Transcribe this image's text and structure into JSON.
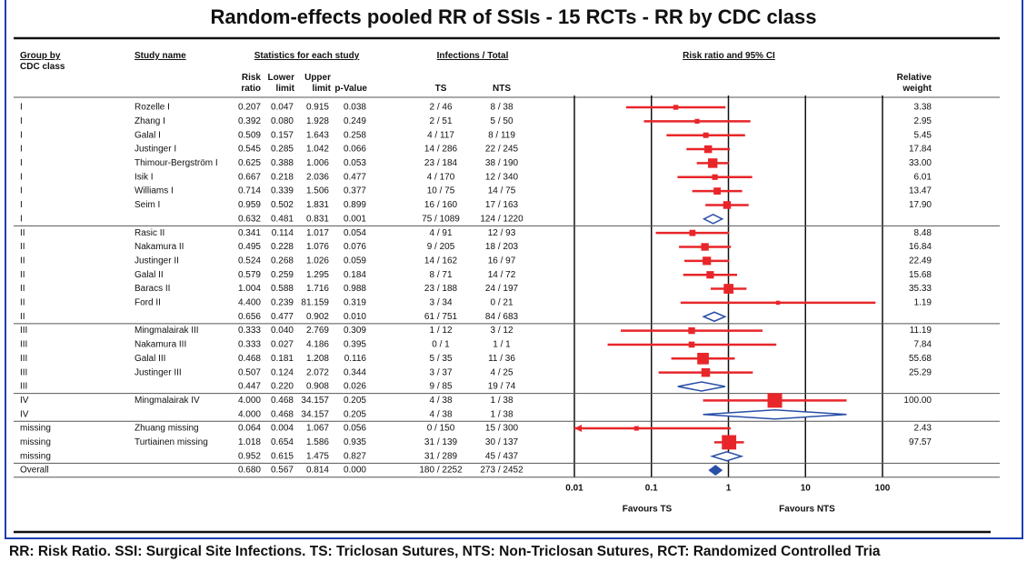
{
  "chart_data": {
    "type": "forest",
    "title": "Random-effects pooled RR of SSIs - 15 RCTs -  RR by CDC class",
    "headers": {
      "group": "Group by",
      "group_sub": "CDC class",
      "study": "Study name",
      "stats": "Statistics for each study",
      "infections": "Infections / Total",
      "ts": "TS",
      "nts": "NTS",
      "plot": "Risk ratio and 95% CI"
    },
    "groups": [
      "I",
      "I",
      "I",
      "I",
      "I",
      "I",
      "I",
      "I",
      "I",
      "II",
      "II",
      "II",
      "II",
      "II",
      "II",
      "II",
      "III",
      "III",
      "III",
      "III",
      "III",
      "IV",
      "IV",
      "missing",
      "missing",
      "missing",
      "Overall"
    ],
    "studies": [
      "Rozelle I",
      "Zhang I",
      "Galal I",
      "Justinger I",
      "Thimour-Bergström I",
      "Isik I",
      "Williams I",
      "Seim I",
      null,
      "Rasic II",
      "Nakamura II",
      "Justinger II",
      "Galal II",
      "Baracs II",
      "Ford II",
      null,
      "Mingmalairak III",
      "Nakamura III",
      "Galal III",
      "Justinger III",
      null,
      "Mingmalairak IV",
      null,
      "Zhuang missing",
      "Turtiainen missing",
      null,
      null
    ],
    "series": [
      {
        "name": "Risk ratio",
        "values": [
          0.207,
          0.392,
          0.509,
          0.545,
          0.625,
          0.667,
          0.714,
          0.959,
          0.632,
          0.341,
          0.495,
          0.524,
          0.579,
          1.004,
          4.4,
          0.656,
          0.333,
          0.333,
          0.468,
          0.507,
          0.447,
          4,
          4,
          0.064,
          1.018,
          0.952,
          0.68
        ],
        "value_labels": [
          "0.207",
          "0.392",
          "0.509",
          "0.545",
          "0.625",
          "0.667",
          "0.714",
          "0.959",
          "0.632",
          "0.341",
          "0.495",
          "0.524",
          "0.579",
          "1.004",
          "4.400",
          "0.656",
          "0.333",
          "0.333",
          "0.468",
          "0.507",
          "0.447",
          "4.000",
          "4.000",
          "0.064",
          "1.018",
          "0.952",
          "0.680"
        ]
      },
      {
        "name": "Lower limit",
        "values": [
          0.047,
          0.08,
          0.157,
          0.285,
          0.388,
          0.218,
          0.339,
          0.502,
          0.481,
          0.114,
          0.228,
          0.268,
          0.259,
          0.588,
          0.239,
          0.477,
          0.04,
          0.027,
          0.181,
          0.124,
          0.22,
          0.468,
          0.468,
          0.004,
          0.654,
          0.615,
          0.567
        ],
        "value_labels": [
          "0.047",
          "0.080",
          "0.157",
          "0.285",
          "0.388",
          "0.218",
          "0.339",
          "0.502",
          "0.481",
          "0.114",
          "0.228",
          "0.268",
          "0.259",
          "0.588",
          "0.239",
          "0.477",
          "0.040",
          "0.027",
          "0.181",
          "0.124",
          "0.220",
          "0.468",
          "0.468",
          "0.004",
          "0.654",
          "0.615",
          "0.567"
        ]
      },
      {
        "name": "Upper limit",
        "values": [
          0.915,
          1.928,
          1.643,
          1.042,
          1.006,
          2.036,
          1.506,
          1.831,
          0.831,
          1.017,
          1.076,
          1.026,
          1.295,
          1.716,
          81.159,
          0.902,
          2.769,
          4.186,
          1.208,
          2.072,
          0.908,
          34.157,
          34.157,
          1.067,
          1.586,
          1.475,
          0.814
        ],
        "value_labels": [
          "0.915",
          "1.928",
          "1.643",
          "1.042",
          "1.006",
          "2.036",
          "1.506",
          "1.831",
          "0.831",
          "1.017",
          "1.076",
          "1.026",
          "1.295",
          "1.716",
          "81.159",
          "0.902",
          "2.769",
          "4.186",
          "1.208",
          "2.072",
          "0.908",
          "34.157",
          "34.157",
          "1.067",
          "1.586",
          "1.475",
          "0.814"
        ]
      },
      {
        "name": "p-Value",
        "values": [
          0.038,
          0.249,
          0.258,
          0.066,
          0.053,
          0.477,
          0.377,
          0.899,
          0.001,
          0.054,
          0.076,
          0.059,
          0.184,
          0.988,
          0.319,
          0.01,
          0.309,
          0.395,
          0.116,
          0.344,
          0.026,
          0.205,
          0.205,
          0.056,
          0.935,
          0.827,
          0
        ],
        "value_labels": [
          "0.038",
          "0.249",
          "0.258",
          "0.066",
          "0.053",
          "0.477",
          "0.377",
          "0.899",
          "0.001",
          "0.054",
          "0.076",
          "0.059",
          "0.184",
          "0.988",
          "0.319",
          "0.010",
          "0.309",
          "0.395",
          "0.116",
          "0.344",
          "0.026",
          "0.205",
          "0.205",
          "0.056",
          "0.935",
          "0.827",
          "0.000"
        ]
      },
      {
        "name": "Relative weight",
        "values": [
          3.38,
          2.95,
          5.45,
          17.84,
          33,
          6.01,
          13.47,
          17.9,
          null,
          8.48,
          16.84,
          22.49,
          15.68,
          35.33,
          1.19,
          null,
          11.19,
          7.84,
          55.68,
          25.29,
          null,
          100,
          null,
          2.43,
          97.57,
          null,
          null
        ],
        "value_labels": [
          "3.38",
          "2.95",
          "5.45",
          "17.84",
          "33.00",
          "6.01",
          "13.47",
          "17.90",
          null,
          "8.48",
          "16.84",
          "22.49",
          "15.68",
          "35.33",
          "1.19",
          null,
          "11.19",
          "7.84",
          "55.68",
          "25.29",
          null,
          "100.00",
          null,
          "2.43",
          "97.57",
          null,
          null
        ]
      }
    ],
    "ts": [
      "2 / 46",
      "2 / 51",
      "4 / 117",
      "14 / 286",
      "23 / 184",
      "4 / 170",
      "10 / 75",
      "16 / 160",
      "75 / 1089",
      "4 / 91",
      "9 / 205",
      "14 / 162",
      "8 / 71",
      "23 / 188",
      "3 / 34",
      "61 / 751",
      "1 / 12",
      "0 / 1",
      "5 / 35",
      "3 / 37",
      "9 / 85",
      "4 / 38",
      "4 / 38",
      "0 / 150",
      "31 / 139",
      "31 / 289",
      "180 / 2252"
    ],
    "nts": [
      "8 / 38",
      "5 / 50",
      "8 / 119",
      "22 / 245",
      "38 / 190",
      "12 / 340",
      "14 / 75",
      "17 / 163",
      "124 / 1220",
      "12 / 93",
      "18 / 203",
      "16 / 97",
      "14 / 72",
      "24 / 197",
      "0 / 21",
      "84 / 683",
      "3 / 12",
      "1 / 1",
      "11 / 36",
      "4 / 25",
      "19 / 74",
      "1 / 38",
      "1 / 38",
      "15 / 300",
      "30 / 137",
      "45 / 437",
      "273 / 2452"
    ],
    "xlim": [
      0.01,
      100
    ],
    "xticks": [
      0.01,
      0.1,
      1,
      10,
      100
    ],
    "log_scale": true,
    "favours_left": "Favours TS",
    "favours_right": "Favours NTS",
    "color": "#e8262a",
    "summary_color": "#2a4fa8",
    "footnote": "RR: Risk Ratio. SSI: Surgical Site Infections. TS: Triclosan Sutures, NTS: Non-Triclosan Sutures, RCT: Randomized Controlled Tria"
  }
}
